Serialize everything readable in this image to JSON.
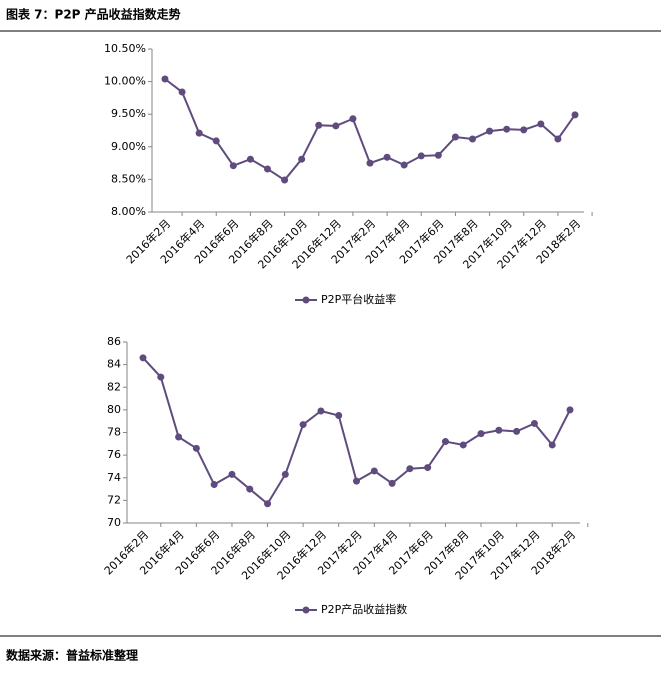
{
  "header": {
    "title": "图表 7：P2P 产品收益指数走势"
  },
  "footer": {
    "source": "数据来源：普益标准整理"
  },
  "chart_data": [
    {
      "type": "line",
      "categories": [
        "2016年2月",
        null,
        "2016年4月",
        null,
        "2016年6月",
        null,
        "2016年8月",
        null,
        "2016年10月",
        null,
        "2016年12月",
        null,
        "2017年2月",
        null,
        "2017年4月",
        null,
        "2017年6月",
        null,
        "2017年8月",
        null,
        "2017年10月",
        null,
        "2017年12月",
        null,
        "2018年2月"
      ],
      "series": [
        {
          "name": "P2P平台收益率",
          "color": "#5f4b7e",
          "values": [
            10.04,
            9.84,
            9.21,
            9.09,
            8.71,
            8.81,
            8.66,
            8.49,
            8.81,
            9.33,
            9.32,
            9.43,
            8.75,
            8.84,
            8.72,
            8.86,
            8.87,
            9.15,
            9.12,
            9.24,
            9.27,
            9.26,
            9.35,
            9.12,
            9.49
          ]
        }
      ],
      "ylim": [
        8.0,
        10.5
      ],
      "yticks": [
        {
          "value": 8.0,
          "label": "8.00%"
        },
        {
          "value": 8.5,
          "label": "8.50%"
        },
        {
          "value": 9.0,
          "label": "9.00%"
        },
        {
          "value": 9.5,
          "label": "9.50%"
        },
        {
          "value": 10.0,
          "label": "10.00%"
        },
        {
          "value": 10.5,
          "label": "10.50%"
        }
      ],
      "grid": false,
      "legend": "bottom"
    },
    {
      "type": "line",
      "categories": [
        "2016年2月",
        null,
        "2016年4月",
        null,
        "2016年6月",
        null,
        "2016年8月",
        null,
        "2016年10月",
        null,
        "2016年12月",
        null,
        "2017年2月",
        null,
        "2017年4月",
        null,
        "2017年6月",
        null,
        "2017年8月",
        null,
        "2017年10月",
        null,
        "2017年12月",
        null,
        "2018年2月"
      ],
      "series": [
        {
          "name": "P2P产品收益指数",
          "color": "#5f4b7e",
          "values": [
            84.6,
            82.9,
            77.6,
            76.6,
            73.4,
            74.3,
            73.0,
            71.7,
            74.3,
            78.7,
            79.9,
            79.5,
            73.7,
            74.6,
            73.5,
            74.8,
            74.9,
            77.2,
            76.9,
            77.9,
            78.2,
            78.1,
            78.8,
            76.9,
            80.0
          ]
        }
      ],
      "ylim": [
        70,
        86
      ],
      "yticks": [
        70,
        72,
        74,
        76,
        78,
        80,
        82,
        84,
        86
      ],
      "grid": false,
      "legend": "bottom"
    }
  ]
}
